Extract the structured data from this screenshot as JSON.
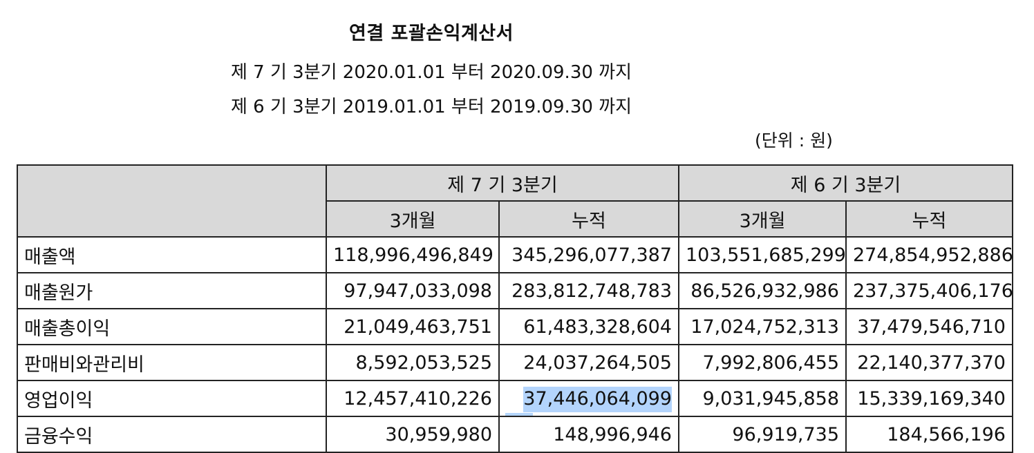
{
  "document": {
    "title": "연결 포괄손익계산서",
    "period_current": "제 7 기 3분기 2020.01.01 부터 2020.09.30 까지",
    "period_prior": "제 6 기 3분기 2019.01.01 부터 2019.09.30 까지",
    "unit": "(단위 : 원)"
  },
  "table": {
    "header": {
      "group_current": "제 7 기 3분기",
      "group_prior": "제 6 기 3분기",
      "col_3m_current": "3개월",
      "col_cum_current": "누적",
      "col_3m_prior": "3개월",
      "col_cum_prior": "누적"
    },
    "rows": [
      {
        "label": "매출액",
        "c3m": "118,996,496,849",
        "ccum": "345,296,077,387",
        "p3m": "103,551,685,299",
        "pcum": "274,854,952,886"
      },
      {
        "label": "매출원가",
        "c3m": "97,947,033,098",
        "ccum": "283,812,748,783",
        "p3m": "86,526,932,986",
        "pcum": "237,375,406,176"
      },
      {
        "label": "매출총이익",
        "c3m": "21,049,463,751",
        "ccum": "61,483,328,604",
        "p3m": "17,024,752,313",
        "pcum": "37,479,546,710"
      },
      {
        "label": "판매비와관리비",
        "c3m": "8,592,053,525",
        "ccum": "24,037,264,505",
        "p3m": "7,992,806,455",
        "pcum": "22,140,377,370"
      },
      {
        "label": "영업이익",
        "c3m": "12,457,410,226",
        "ccum": "37,446,064,099",
        "p3m": "9,031,945,858",
        "pcum": "15,339,169,340"
      },
      {
        "label": "금융수익",
        "c3m": "30,959,980",
        "ccum": "148,996,946",
        "p3m": "96,919,735",
        "pcum": "184,566,196"
      }
    ],
    "selection_color": "#b3d4fc",
    "header_bg": "#d9d9d9"
  }
}
